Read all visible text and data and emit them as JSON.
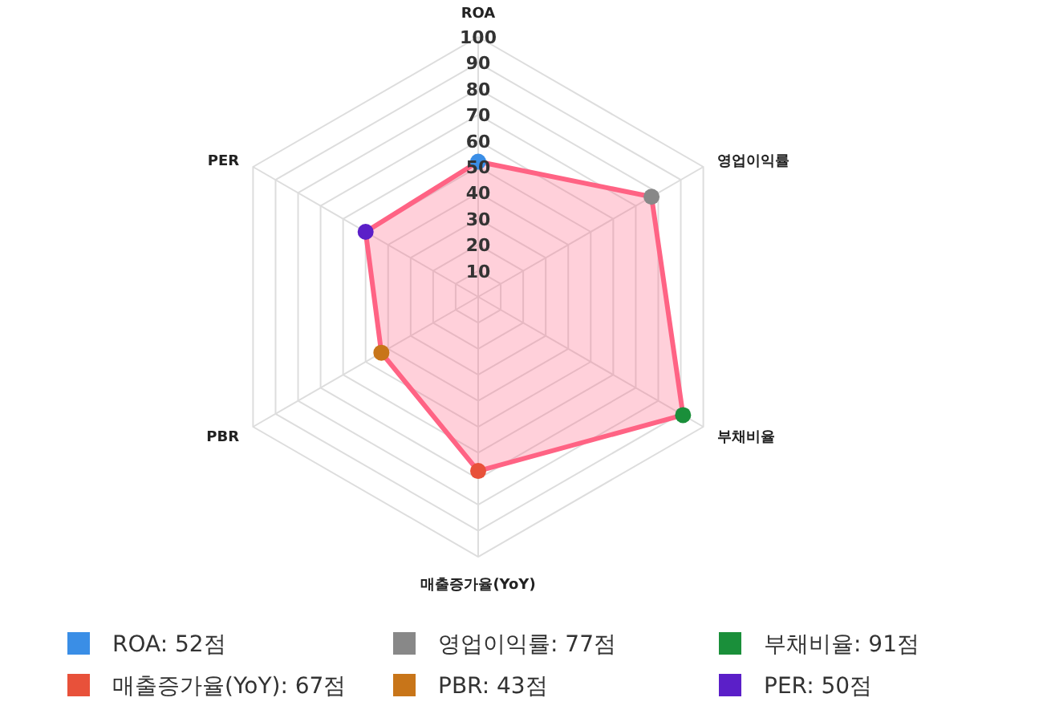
{
  "chart_data": {
    "type": "radar",
    "categories": [
      "ROA",
      "영업이익률",
      "부채비율",
      "매출증가율(YoY)",
      "PBR",
      "PER"
    ],
    "ylim": [
      0,
      100
    ],
    "yticks": [
      10,
      20,
      30,
      40,
      50,
      60,
      70,
      80,
      90,
      100
    ],
    "grid": true,
    "marker": "circle",
    "series": [
      {
        "color": "#ff6384",
        "values": [
          52,
          77,
          91,
          67,
          43,
          50
        ],
        "colors": [
          "#3a8ee6",
          "#888888",
          "#1a8f3a",
          "#e8513a",
          "#c87519",
          "#5b1fc8"
        ]
      }
    ],
    "annotations": [
      "ROA: 52점",
      "영업이익률: 77점",
      "부채비율: 91점",
      "매출증가율(YoY): 67점",
      "PBR: 43점",
      "PER: 50점"
    ]
  }
}
